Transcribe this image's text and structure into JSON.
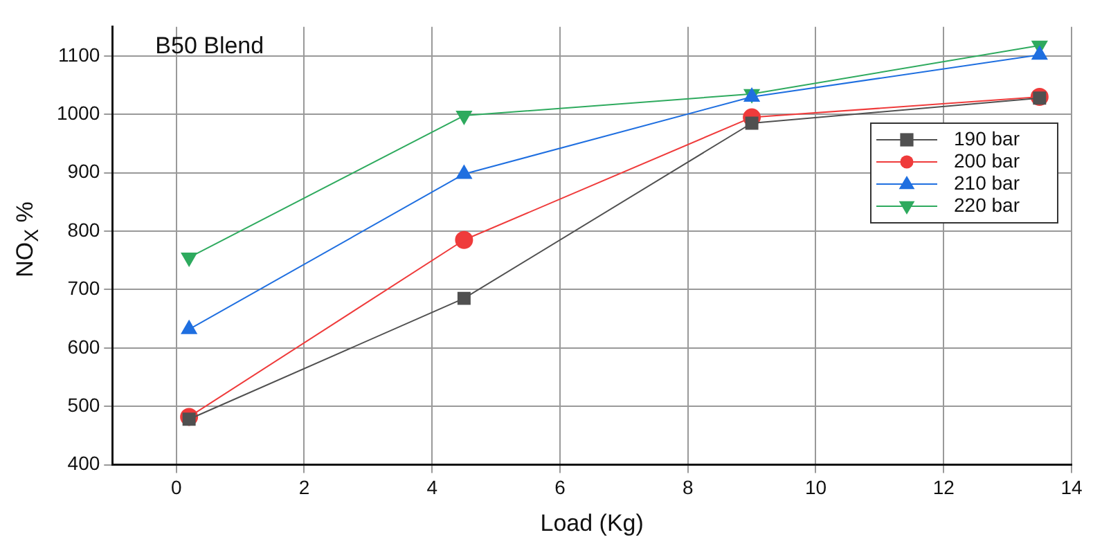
{
  "chart_data": {
    "type": "line",
    "title": "B50 Blend",
    "xlabel": "Load (Kg)",
    "ylabel": "NO$_{X}$ %",
    "xlim": [
      -1,
      14
    ],
    "xticks": [
      0,
      2,
      4,
      6,
      8,
      10,
      12,
      14
    ],
    "ylim": [
      400,
      1150
    ],
    "yticks": [
      400,
      500,
      600,
      700,
      800,
      900,
      1000,
      1100
    ],
    "grid": true,
    "legend": "right",
    "series": [
      {
        "name": "190 bar",
        "color": "#505050",
        "marker": "square",
        "x": [
          0.2,
          4.5,
          9,
          13.5
        ],
        "values": [
          478,
          685,
          985,
          1028
        ]
      },
      {
        "name": "200 bar",
        "color": "#ef3b3b",
        "marker": "circle",
        "x": [
          0.2,
          4.5,
          9,
          13.5
        ],
        "values": [
          482,
          785,
          995,
          1030
        ]
      },
      {
        "name": "210 bar",
        "color": "#1f6fe0",
        "marker": "triangle",
        "x": [
          0.2,
          4.5,
          9,
          13.5
        ],
        "values": [
          632,
          898,
          1030,
          1102
        ]
      },
      {
        "name": "220 bar",
        "color": "#2eaa5e",
        "marker": "triangle-down",
        "x": [
          0.2,
          4.5,
          9,
          13.5
        ],
        "values": [
          755,
          998,
          1035,
          1118
        ]
      }
    ]
  }
}
